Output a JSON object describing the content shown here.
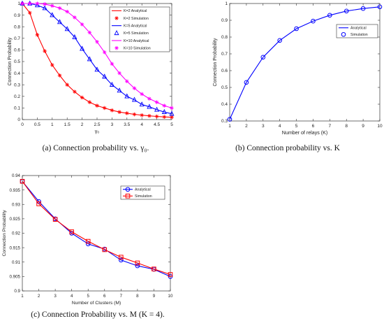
{
  "captions": {
    "a": "(a) Connection probability vs. γ₀.",
    "b": "(b) Connection probability vs. K",
    "c": "(c) Connection Probability vs. M (K = 4)."
  },
  "chart_data": [
    {
      "id": "a",
      "type": "line",
      "xlabel": "γ₀",
      "ylabel": "Connection Probability",
      "xlim": [
        0,
        5
      ],
      "ylim": [
        0,
        1
      ],
      "xticks": [
        "0",
        "0.5",
        "1",
        "1.5",
        "2",
        "2.5",
        "3",
        "3.5",
        "4",
        "4.5",
        "5"
      ],
      "yticks": [
        "0",
        "0.1",
        "0.2",
        "0.3",
        "0.4",
        "0.5",
        "0.6",
        "0.7",
        "0.8",
        "0.9",
        "1"
      ],
      "grid": false,
      "legend_position": "top-right",
      "x": [
        0,
        0.25,
        0.5,
        0.75,
        1,
        1.25,
        1.5,
        1.75,
        2,
        2.25,
        2.5,
        2.75,
        3,
        3.25,
        3.5,
        3.75,
        4,
        4.25,
        4.5,
        4.75,
        5
      ],
      "series": [
        {
          "name": "K=2 Analytical",
          "color": "#ff0000",
          "marker": "none",
          "values": [
            1.0,
            0.92,
            0.73,
            0.59,
            0.47,
            0.38,
            0.3,
            0.24,
            0.19,
            0.15,
            0.12,
            0.1,
            0.08,
            0.065,
            0.055,
            0.045,
            0.038,
            0.032,
            0.027,
            0.023,
            0.02
          ]
        },
        {
          "name": "K=2 Simulation",
          "color": "#ff0000",
          "marker": "asterisk",
          "values": [
            1.0,
            0.92,
            0.73,
            0.59,
            0.47,
            0.38,
            0.3,
            0.24,
            0.19,
            0.15,
            0.12,
            0.1,
            0.08,
            0.065,
            0.055,
            0.045,
            0.038,
            0.032,
            0.027,
            0.023,
            0.02
          ]
        },
        {
          "name": "K=5 Analytical",
          "color": "#0000ff",
          "marker": "none",
          "values": [
            1.0,
            1.0,
            0.985,
            0.96,
            0.9,
            0.84,
            0.78,
            0.71,
            0.61,
            0.52,
            0.43,
            0.37,
            0.3,
            0.25,
            0.2,
            0.17,
            0.13,
            0.11,
            0.085,
            0.065,
            0.05
          ]
        },
        {
          "name": "K=5 Simulation",
          "color": "#0000ff",
          "marker": "triangle",
          "values": [
            1.0,
            1.0,
            0.985,
            0.96,
            0.9,
            0.84,
            0.78,
            0.71,
            0.61,
            0.52,
            0.43,
            0.37,
            0.3,
            0.25,
            0.2,
            0.17,
            0.13,
            0.11,
            0.085,
            0.065,
            0.05
          ]
        },
        {
          "name": "K=10 Analytical",
          "color": "#ff00ff",
          "marker": "none",
          "values": [
            1.0,
            1.0,
            1.0,
            0.995,
            0.98,
            0.96,
            0.93,
            0.88,
            0.82,
            0.75,
            0.67,
            0.58,
            0.48,
            0.4,
            0.33,
            0.27,
            0.22,
            0.18,
            0.15,
            0.12,
            0.1
          ]
        },
        {
          "name": "K=10 Simulation",
          "color": "#ff00ff",
          "marker": "asterisk",
          "values": [
            1.0,
            1.0,
            1.0,
            0.995,
            0.98,
            0.96,
            0.93,
            0.88,
            0.82,
            0.75,
            0.67,
            0.58,
            0.48,
            0.4,
            0.33,
            0.27,
            0.22,
            0.18,
            0.15,
            0.12,
            0.1
          ]
        }
      ]
    },
    {
      "id": "b",
      "type": "line",
      "xlabel": "Number of relays (K)",
      "ylabel": "Connection Probability",
      "xlim": [
        1,
        10
      ],
      "ylim": [
        0.3,
        1
      ],
      "xticks": [
        "1",
        "2",
        "3",
        "4",
        "5",
        "6",
        "7",
        "8",
        "9",
        "10"
      ],
      "yticks": [
        "0.3",
        "0.4",
        "0.5",
        "0.6",
        "0.7",
        "0.8",
        "0.9",
        "1"
      ],
      "grid": false,
      "legend_position": "middle-right",
      "x": [
        1,
        2,
        3,
        4,
        5,
        6,
        7,
        8,
        9,
        10
      ],
      "series": [
        {
          "name": "Analytical",
          "color": "#0000ff",
          "marker": "none",
          "values": [
            0.31,
            0.53,
            0.68,
            0.78,
            0.85,
            0.895,
            0.93,
            0.955,
            0.97,
            0.98
          ]
        },
        {
          "name": "Simulation",
          "color": "#0000ff",
          "marker": "circle",
          "values": [
            0.31,
            0.53,
            0.68,
            0.78,
            0.85,
            0.895,
            0.93,
            0.955,
            0.97,
            0.98
          ]
        }
      ]
    },
    {
      "id": "c",
      "type": "line",
      "xlabel": "Number of Clusters (M)",
      "ylabel": "Connection Probability",
      "xlim": [
        1,
        10
      ],
      "ylim": [
        0.9,
        0.94
      ],
      "xticks": [
        "1",
        "2",
        "3",
        "4",
        "5",
        "6",
        "7",
        "8",
        "9",
        "10"
      ],
      "yticks": [
        "0.9",
        "0.905",
        "0.91",
        "0.915",
        "0.92",
        "0.925",
        "0.93",
        "0.935",
        "0.94"
      ],
      "grid": false,
      "legend_position": "top-right",
      "x": [
        1,
        2,
        3,
        4,
        5,
        6,
        7,
        8,
        9,
        10
      ],
      "series": [
        {
          "name": "Analytical",
          "color": "#0000ff",
          "marker": "circle",
          "values": [
            0.938,
            0.931,
            0.925,
            0.92,
            0.9163,
            0.9145,
            0.9107,
            0.9087,
            0.9075,
            0.905
          ]
        },
        {
          "name": "Simulation",
          "color": "#ff0000",
          "marker": "square",
          "values": [
            0.938,
            0.9302,
            0.9248,
            0.9205,
            0.9172,
            0.9143,
            0.9117,
            0.9097,
            0.9076,
            0.9057
          ]
        }
      ]
    }
  ]
}
